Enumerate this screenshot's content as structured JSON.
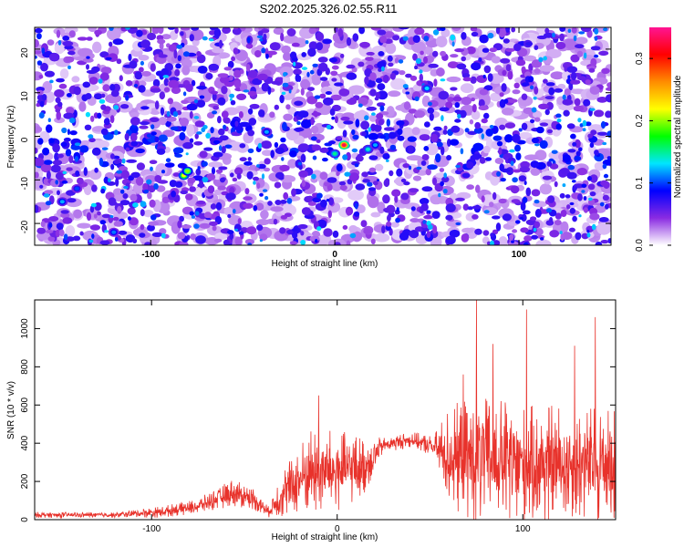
{
  "title": "S202.2025.326.02.55.R11",
  "chart_data": [
    {
      "type": "heatmap",
      "xlabel": "Height of straight line (km)",
      "ylabel": "Frequency (Hz)",
      "xlim": [
        -163,
        150
      ],
      "ylim": [
        -25,
        25
      ],
      "x_ticks": [
        -100,
        0,
        100
      ],
      "y_ticks": [
        -20,
        -10,
        0,
        10,
        20
      ],
      "colorbar": {
        "label": "Normalized spectral amplitude",
        "range": [
          0,
          0.35
        ],
        "ticks": [
          "0.0",
          "0.1",
          "0.2",
          "0.3"
        ],
        "colormap": [
          "#ffffff",
          "#8a2be2",
          "#0000ff",
          "#00e5ff",
          "#00ff00",
          "#ffff00",
          "#ff8c00",
          "#ff0000",
          "#ff1493"
        ]
      },
      "peaks": [
        {
          "x": 5,
          "y": -2,
          "value": 0.33
        },
        {
          "x": -82,
          "y": -9,
          "value": 0.22
        },
        {
          "x": -80,
          "y": -8,
          "value": 0.2
        },
        {
          "x": 18,
          "y": -3,
          "value": 0.14
        },
        {
          "x": 22,
          "y": -2,
          "value": 0.12
        },
        {
          "x": 50,
          "y": 11,
          "value": 0.13
        },
        {
          "x": -148,
          "y": -15,
          "value": 0.12
        },
        {
          "x": -140,
          "y": -12,
          "value": 0.1
        },
        {
          "x": 0,
          "y": -4,
          "value": 0.15
        },
        {
          "x": -37,
          "y": 1,
          "value": 0.12
        },
        {
          "x": -120,
          "y": -22,
          "value": 0.11
        }
      ]
    },
    {
      "type": "line",
      "xlabel": "Height of straight line (km)",
      "ylabel": "SNR (10 * v/v)",
      "xlim": [
        -163,
        150
      ],
      "ylim": [
        0,
        1150
      ],
      "x_ticks": [
        -100,
        0,
        100
      ],
      "y_ticks": [
        0,
        200,
        400,
        600,
        800,
        1000
      ],
      "color": "#e8322b",
      "envelope": [
        {
          "x": -163,
          "base": 25,
          "noise": 15
        },
        {
          "x": -120,
          "base": 25,
          "noise": 15
        },
        {
          "x": -95,
          "base": 40,
          "noise": 30
        },
        {
          "x": -75,
          "base": 70,
          "noise": 40
        },
        {
          "x": -57,
          "base": 140,
          "noise": 70
        },
        {
          "x": -45,
          "base": 110,
          "noise": 60
        },
        {
          "x": -37,
          "base": 40,
          "noise": 30
        },
        {
          "x": -30,
          "base": 130,
          "noise": 120
        },
        {
          "x": -15,
          "base": 250,
          "noise": 220
        },
        {
          "x": 0,
          "base": 250,
          "noise": 220
        },
        {
          "x": 15,
          "base": 280,
          "noise": 150
        },
        {
          "x": 25,
          "base": 390,
          "noise": 40
        },
        {
          "x": 40,
          "base": 420,
          "noise": 40
        },
        {
          "x": 52,
          "base": 380,
          "noise": 60
        },
        {
          "x": 60,
          "base": 330,
          "noise": 260
        },
        {
          "x": 75,
          "base": 320,
          "noise": 340
        },
        {
          "x": 100,
          "base": 290,
          "noise": 310
        },
        {
          "x": 150,
          "base": 290,
          "noise": 300
        }
      ],
      "spikes": [
        {
          "x": 75,
          "y": 1150
        },
        {
          "x": 102,
          "y": 1100
        },
        {
          "x": 139,
          "y": 1060
        },
        {
          "x": 84,
          "y": 920
        },
        {
          "x": 128,
          "y": 910
        },
        {
          "x": -10,
          "y": 650
        },
        {
          "x": 68,
          "y": 760
        }
      ]
    }
  ]
}
